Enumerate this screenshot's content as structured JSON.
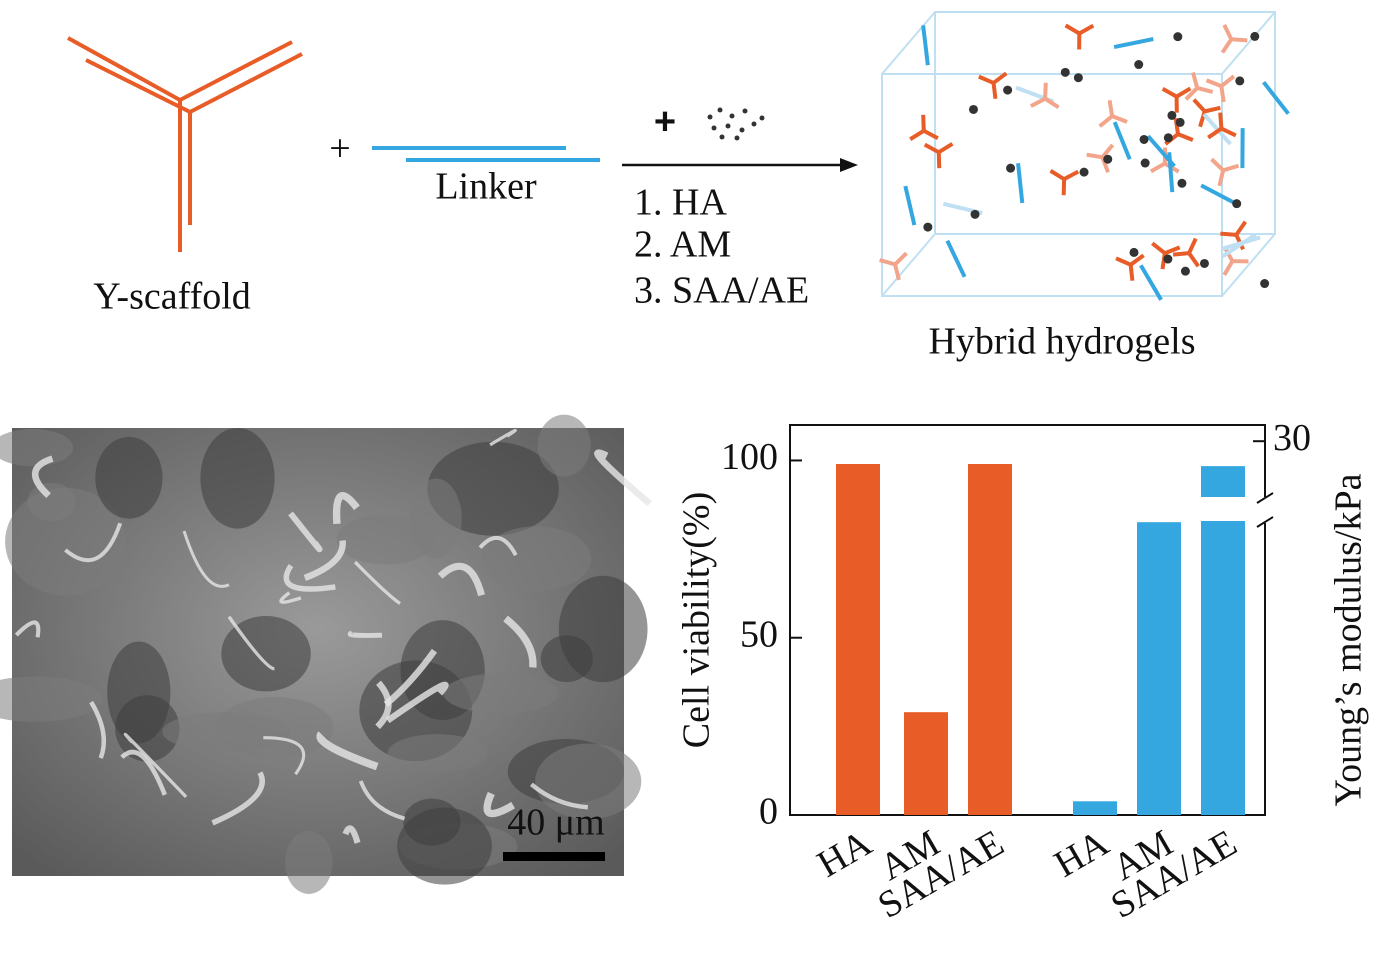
{
  "schematic": {
    "scaffold_label": "Y-scaffold",
    "plus": "+",
    "linker_label": "Linker",
    "plus2": "+",
    "steps": [
      "1. HA",
      "2. AM",
      "3. SAA/AE"
    ],
    "product_label": "Hybrid hydrogels"
  },
  "micrograph": {
    "scale_bar": "40 μm"
  },
  "chart_data": {
    "type": "bar",
    "categories": [
      "HA",
      "AM",
      "SAA/AE",
      "HA",
      "AM",
      "SAA/AE"
    ],
    "ylabel": "Cell viability(%)",
    "y2label": "Young’s modulus/kPa",
    "ylim": [
      0,
      110
    ],
    "yticks": [
      0,
      50,
      100
    ],
    "y2lim": [
      0,
      31.3
    ],
    "y2ticks": [
      30
    ],
    "series": [
      {
        "color": "#e85d27",
        "values": [
          99,
          29,
          99,
          null,
          null,
          null
        ]
      },
      {
        "color": "#35a7e0",
        "axis": "y2",
        "values": [
          null,
          null,
          null,
          1.1,
          23.5,
          28
        ]
      }
    ]
  }
}
